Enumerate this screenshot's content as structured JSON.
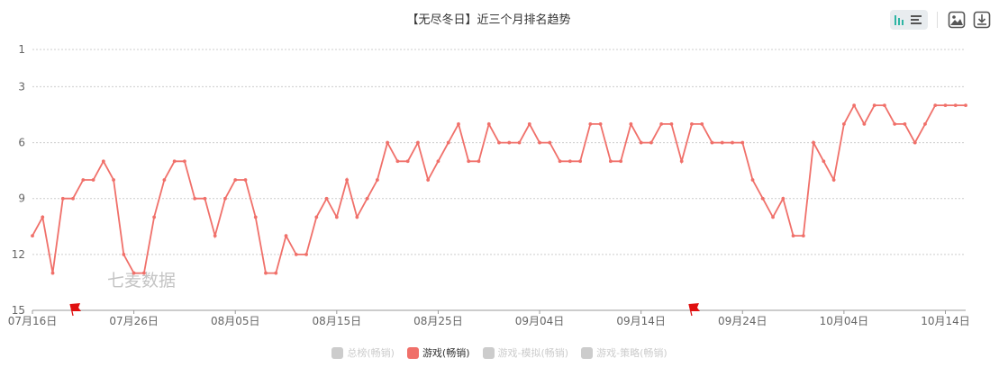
{
  "toolbar": {
    "icons": [
      "chart-type-icon",
      "image-download-icon",
      "data-download-icon"
    ]
  },
  "watermark": "七麦数据",
  "colors": {
    "series": "#f0706a",
    "flag": "#e01010",
    "grid": "#cccccc",
    "axis": "#666666"
  },
  "chart_data": {
    "type": "line",
    "title": "【无尽冬日】近三个月排名趋势",
    "y_inverted": true,
    "ylim": [
      1,
      15
    ],
    "yticks": [
      "1",
      "3",
      "6",
      "9",
      "12",
      "15"
    ],
    "ytick_values": [
      1,
      3,
      6,
      9,
      12,
      15
    ],
    "x_start": "2024-07-16",
    "x_labels": [
      "07月16日",
      "07月26日",
      "08月05日",
      "08月15日",
      "08月25日",
      "09月04日",
      "09月14日",
      "09月24日",
      "10月04日",
      "10月14日"
    ],
    "x_label_days": [
      0,
      10,
      20,
      30,
      40,
      50,
      60,
      70,
      80,
      90
    ],
    "grid": true,
    "legend_position": "bottom",
    "legend": [
      {
        "label": "总榜(畅销)",
        "active": false
      },
      {
        "label": "游戏(畅销)",
        "active": true
      },
      {
        "label": "游戏-模拟(畅销)",
        "active": false
      },
      {
        "label": "游戏-策略(畅销)",
        "active": false
      }
    ],
    "flags": [
      4,
      65
    ],
    "series": [
      {
        "name": "游戏(畅销)",
        "values": [
          11,
          10,
          13,
          9,
          9,
          8,
          8,
          7,
          8,
          12,
          13,
          13,
          10,
          8,
          7,
          7,
          9,
          9,
          11,
          9,
          8,
          8,
          10,
          13,
          13,
          11,
          12,
          12,
          10,
          9,
          10,
          8,
          10,
          9,
          8,
          6,
          7,
          7,
          6,
          8,
          7,
          6,
          5,
          7,
          7,
          5,
          6,
          6,
          6,
          5,
          6,
          6,
          7,
          7,
          7,
          5,
          5,
          7,
          7,
          5,
          6,
          6,
          5,
          5,
          7,
          5,
          5,
          6,
          6,
          6,
          6,
          8,
          9,
          10,
          9,
          11,
          11,
          6,
          7,
          8,
          5,
          4,
          5,
          4,
          4,
          5,
          5,
          6,
          5,
          4,
          4,
          4,
          4
        ]
      }
    ]
  }
}
